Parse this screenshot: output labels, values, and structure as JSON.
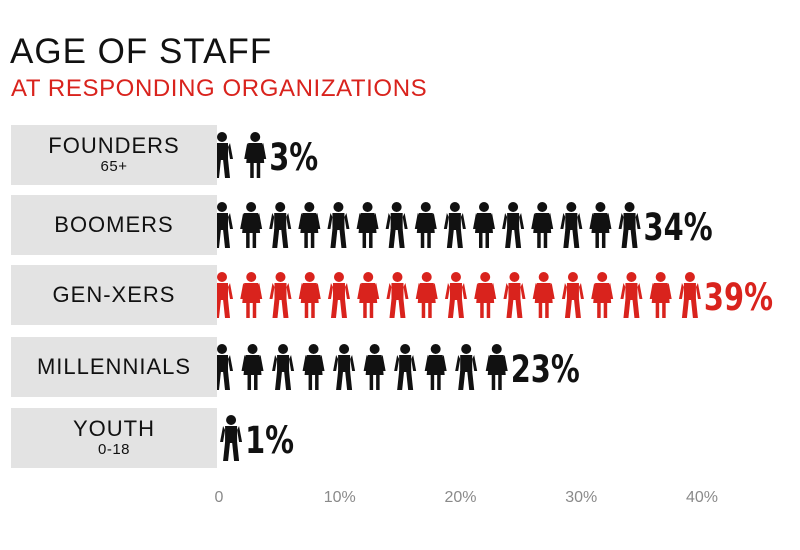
{
  "colors": {
    "highlight": "#d9231d",
    "figure": "#111111",
    "label_bg": "#e3e3e3",
    "tick": "#8a8a8a"
  },
  "chart_data": {
    "type": "bar",
    "title": "AGE OF STAFF",
    "subtitle": "AT RESPONDING ORGANIZATIONS",
    "categories": [
      {
        "name": "FOUNDERS",
        "sub": "65+"
      },
      {
        "name": "BOOMERS",
        "sub": ""
      },
      {
        "name": "GEN-XERS",
        "sub": ""
      },
      {
        "name": "MILLENNIALS",
        "sub": ""
      },
      {
        "name": "YOUTH",
        "sub": "0-18"
      }
    ],
    "values": [
      3,
      34,
      39,
      23,
      1
    ],
    "value_labels": [
      "3%",
      "34%",
      "39%",
      "23%",
      "1%"
    ],
    "highlight_index": 2,
    "xlim": [
      0,
      40
    ],
    "xticks": [
      "0",
      "10%",
      "20%",
      "30%",
      "40%"
    ],
    "grid": false,
    "legend": "none"
  }
}
